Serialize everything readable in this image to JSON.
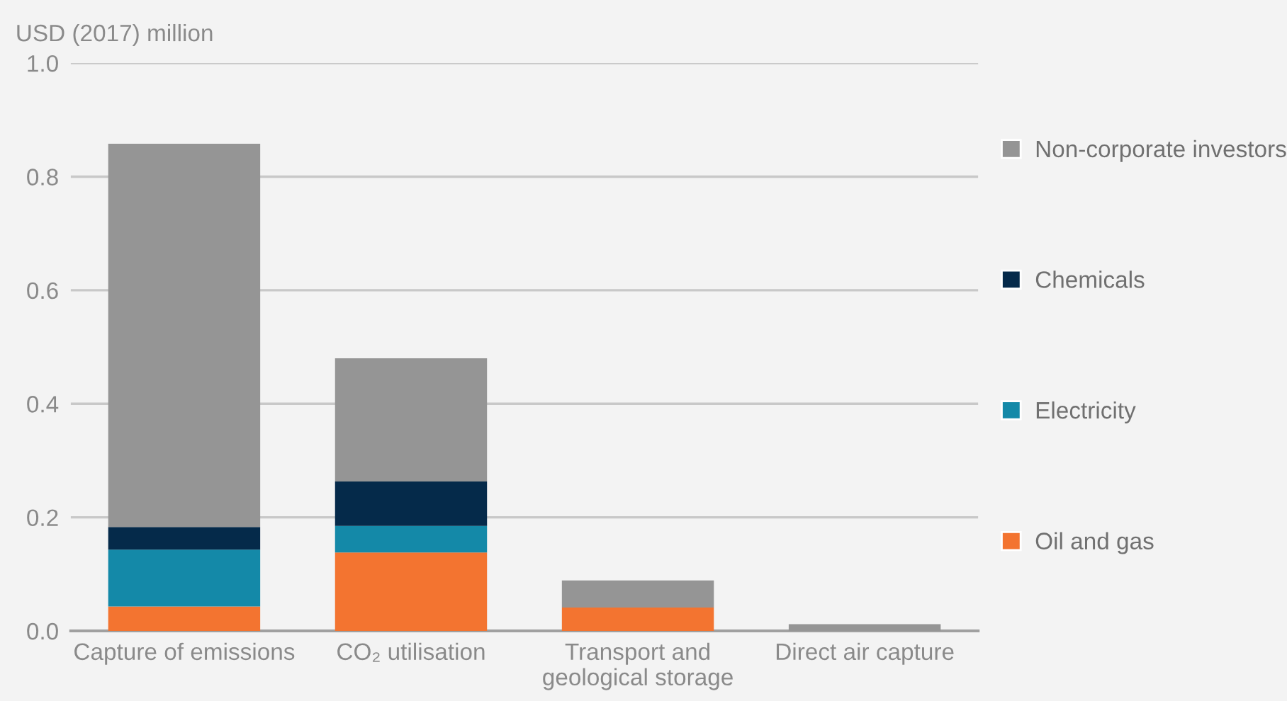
{
  "chart_data": {
    "type": "bar",
    "stacked": true,
    "ylabel": "USD (2017) million",
    "categories": [
      "Capture of emissions",
      "CO₂ utilisation",
      "Transport and\ngeological storage",
      "Direct air capture"
    ],
    "series": [
      {
        "name": "Oil and gas",
        "color": "#f37430",
        "values": [
          0.043,
          0.138,
          0.041,
          0
        ]
      },
      {
        "name": "Electricity",
        "color": "#1489a8",
        "values": [
          0.1,
          0.047,
          0,
          0
        ]
      },
      {
        "name": "Chemicals",
        "color": "#052a4a",
        "values": [
          0.04,
          0.078,
          0,
          0
        ]
      },
      {
        "name": "Non-corporate investors",
        "color": "#959595",
        "values": [
          0.675,
          0.217,
          0.048,
          0.012
        ]
      }
    ],
    "ylim": [
      0,
      1.0
    ],
    "yticks": [
      {
        "value": 0,
        "label": "0.0"
      },
      {
        "value": 0.2,
        "label": "0.2"
      },
      {
        "value": 0.4,
        "label": "0.4"
      },
      {
        "value": 0.6,
        "label": "0.6"
      },
      {
        "value": 0.8,
        "label": "0.8"
      },
      {
        "value": 1.0,
        "label": "1.0"
      }
    ],
    "grid": "y",
    "legend": "right"
  }
}
